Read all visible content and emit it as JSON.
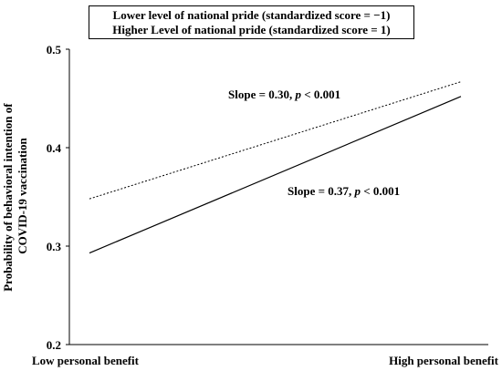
{
  "chart_data": {
    "type": "line",
    "title": "",
    "xlabel": "",
    "ylabel": "Probability of behavioral intention of COVID-19 vaccination",
    "ylabel_lines": [
      "Probability of behavioral intention of",
      "COVID-19 vaccination"
    ],
    "x_categories": [
      "Low personal benefit",
      "High personal benefit"
    ],
    "ylim": [
      0.2,
      0.5
    ],
    "yticks": [
      "0.2",
      "0.3",
      "0.4",
      "0.5"
    ],
    "grid": false,
    "legend_labels": [
      "Lower level of national pride (standardized score = −1)",
      "Higher Level of national pride (standardized score = 1)"
    ],
    "series": [
      {
        "values": [
          0.348,
          0.467
        ],
        "style": "dotted",
        "color": "#000000"
      },
      {
        "values": [
          0.293,
          0.452
        ],
        "style": "solid",
        "color": "#000000"
      }
    ],
    "annotations": [
      {
        "prefix": "Slope = 0.30, ",
        "p": "p",
        "suffix": " < 0.001"
      },
      {
        "prefix": "Slope = 0.37, ",
        "p": "p",
        "suffix": " < 0.001"
      }
    ]
  }
}
